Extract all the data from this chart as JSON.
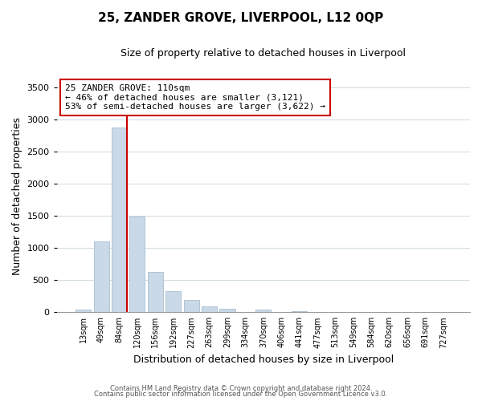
{
  "title_line1": "25, ZANDER GROVE, LIVERPOOL, L12 0QP",
  "title_line2": "Size of property relative to detached houses in Liverpool",
  "xlabel": "Distribution of detached houses by size in Liverpool",
  "ylabel": "Number of detached properties",
  "bar_labels": [
    "13sqm",
    "49sqm",
    "84sqm",
    "120sqm",
    "156sqm",
    "192sqm",
    "227sqm",
    "263sqm",
    "299sqm",
    "334sqm",
    "370sqm",
    "406sqm",
    "441sqm",
    "477sqm",
    "513sqm",
    "549sqm",
    "584sqm",
    "620sqm",
    "656sqm",
    "691sqm",
    "727sqm"
  ],
  "bar_values": [
    35,
    1100,
    2870,
    1490,
    630,
    330,
    190,
    95,
    50,
    5,
    40,
    5,
    15,
    5,
    5,
    5,
    5,
    0,
    0,
    0,
    0
  ],
  "bar_color": "#c9d9e8",
  "bar_edge_color": "#a8bece",
  "vline_x": 2.42,
  "vline_color": "#cc0000",
  "annotation_text": "25 ZANDER GROVE: 110sqm\n← 46% of detached houses are smaller (3,121)\n53% of semi-detached houses are larger (3,622) →",
  "annotation_box_color": "#ffffff",
  "annotation_box_edge_color": "#cc0000",
  "ylim": [
    0,
    3600
  ],
  "yticks": [
    0,
    500,
    1000,
    1500,
    2000,
    2500,
    3000,
    3500
  ],
  "footer_line1": "Contains HM Land Registry data © Crown copyright and database right 2024.",
  "footer_line2": "Contains public sector information licensed under the Open Government Licence v3.0.",
  "background_color": "#ffffff",
  "grid_color": "#c8d4dc"
}
